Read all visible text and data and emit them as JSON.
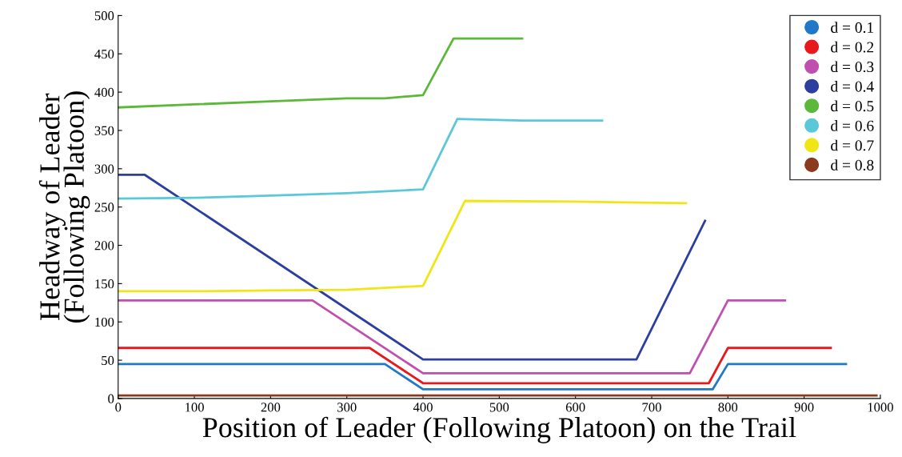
{
  "chart_data": {
    "type": "line",
    "xlabel": "Position of Leader (Following Platoon) on the Trail",
    "ylabel": "Headway of Leader\n(Following Platoon)",
    "xlim": [
      0,
      1000
    ],
    "xticks": [
      0,
      100,
      200,
      300,
      400,
      500,
      600,
      700,
      800,
      900,
      1000
    ],
    "ylim": [
      0,
      500
    ],
    "yticks": [
      0,
      50,
      100,
      150,
      200,
      250,
      300,
      350,
      400,
      450,
      500
    ],
    "grid": false,
    "legend": "top right",
    "marker": "none",
    "line_style": "solid",
    "series": [
      {
        "name": "d = 0.1",
        "color": "#1f78c8",
        "x": [
          0,
          350,
          400,
          780,
          800,
          955
        ],
        "values": [
          45,
          45,
          12,
          12,
          45,
          45
        ]
      },
      {
        "name": "d = 0.2",
        "color": "#e8191c",
        "x": [
          0,
          330,
          400,
          775,
          800,
          935
        ],
        "values": [
          66,
          66,
          20,
          20,
          66,
          66
        ]
      },
      {
        "name": "d = 0.3",
        "color": "#c050b0",
        "x": [
          0,
          255,
          400,
          750,
          800,
          875
        ],
        "values": [
          128,
          128,
          33,
          33,
          128,
          128
        ]
      },
      {
        "name": "d = 0.4",
        "color": "#2d3f9e",
        "x": [
          0,
          35,
          400,
          680,
          770
        ],
        "values": [
          292,
          292,
          51,
          51,
          232
        ]
      },
      {
        "name": "d = 0.5",
        "color": "#5cb83a",
        "x": [
          0,
          100,
          200,
          300,
          350,
          400,
          440,
          530
        ],
        "values": [
          380,
          384,
          388,
          392,
          392,
          396,
          470,
          470
        ]
      },
      {
        "name": "d = 0.6",
        "color": "#5bc8d8",
        "x": [
          0,
          100,
          200,
          300,
          400,
          445,
          530,
          635
        ],
        "values": [
          261,
          262,
          265,
          268,
          273,
          365,
          363,
          363
        ]
      },
      {
        "name": "d = 0.7",
        "color": "#f0e615",
        "x": [
          0,
          100,
          200,
          300,
          400,
          455,
          600,
          745
        ],
        "values": [
          140,
          140,
          141,
          142,
          147,
          258,
          257,
          255
        ]
      },
      {
        "name": "d = 0.8",
        "color": "#8b3a1e",
        "x": [
          0,
          500,
          995
        ],
        "values": [
          4,
          4,
          4
        ]
      }
    ]
  }
}
